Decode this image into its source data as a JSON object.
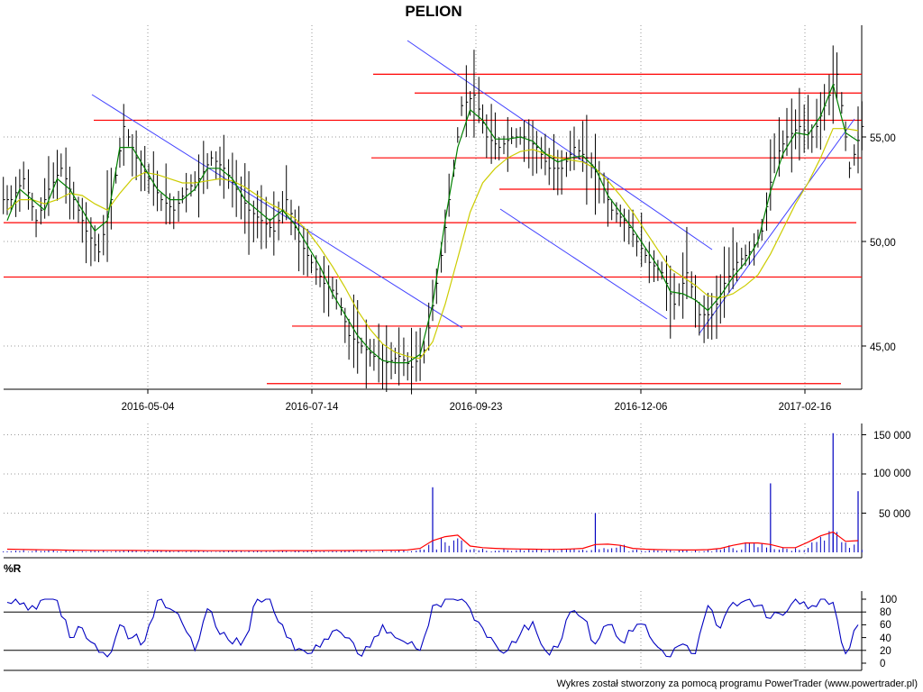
{
  "chart_data": [
    {
      "type": "candlestick",
      "panel": "price",
      "title": "PELION",
      "x_tick_labels": [
        "2016-05-04",
        "2016-07-14",
        "2016-09-23",
        "2016-12-06",
        "2017-02-16"
      ],
      "y_tick_labels": [
        "45,00",
        "50,00",
        "55,00"
      ],
      "y_ticks": [
        45,
        50,
        55
      ],
      "ylim": [
        43,
        59
      ],
      "grid": true,
      "colors": {
        "price": "#000000",
        "sma_short": "#008000",
        "sma_long": "#cccc00",
        "support_resistance": "#ff0000",
        "trend_lines": "#4040ff"
      },
      "series": [
        {
          "name": "close",
          "values": [
            52,
            53,
            51,
            52.5,
            53.5,
            52,
            50.5,
            49.5,
            52,
            55.5,
            54,
            53,
            52,
            51.5,
            52.5,
            53,
            54,
            53.5,
            52.5,
            51.5,
            51,
            50.5,
            52,
            50,
            49,
            48,
            47.5,
            45.5,
            45,
            44.5,
            44.2,
            44.5,
            44,
            44.8,
            48,
            52,
            56.5,
            57,
            55,
            54.5,
            55,
            55,
            54.5,
            53.5,
            53.5,
            54.5,
            54,
            53,
            51.5,
            51,
            50,
            49,
            48.5,
            47,
            48.5,
            46.5,
            46.5,
            48,
            49,
            49.5,
            50.5,
            54,
            55,
            55.5,
            55,
            56.5,
            58,
            53.5,
            55.5
          ]
        },
        {
          "name": "moving-average-short",
          "values": [
            51,
            52.5,
            52,
            51.5,
            53,
            52.5,
            51.5,
            50.5,
            51,
            54.5,
            54.5,
            53.5,
            52.5,
            52,
            52,
            52.5,
            53.5,
            53.5,
            53,
            52,
            51.5,
            51,
            51.5,
            50.8,
            49.8,
            48.8,
            47.5,
            46.5,
            45.5,
            44.8,
            44.3,
            44.2,
            44.2,
            44.6,
            47,
            51,
            54.5,
            56.3,
            55.8,
            54.9,
            54.9,
            55,
            54.8,
            54.2,
            53.8,
            54,
            54.1,
            53.5,
            52.2,
            51.4,
            50.6,
            49.7,
            48.8,
            47.6,
            47.5,
            47.2,
            46.7,
            47.4,
            48.3,
            49,
            50,
            52.4,
            54.2,
            55.2,
            55.1,
            56,
            57.5,
            55.2,
            54.8
          ]
        },
        {
          "name": "moving-average-long",
          "values": [
            51.5,
            52,
            52,
            51.8,
            52,
            52.3,
            52.2,
            51.8,
            51.5,
            52.3,
            53,
            53.3,
            53.2,
            53,
            52.8,
            52.8,
            52.9,
            53,
            52.9,
            52.6,
            52.2,
            51.8,
            51.5,
            51.1,
            50.5,
            49.7,
            48.8,
            47.8,
            46.7,
            45.8,
            45.1,
            44.7,
            44.5,
            44.4,
            45.2,
            47,
            49.2,
            51.4,
            52.8,
            53.5,
            54,
            54.3,
            54.4,
            54.2,
            54,
            53.9,
            53.8,
            53.5,
            52.9,
            52.2,
            51.4,
            50.5,
            49.6,
            48.7,
            48.3,
            47.9,
            47.4,
            47.3,
            47.5,
            47.9,
            48.4,
            49.4,
            50.6,
            51.8,
            52.8,
            54,
            55.4,
            55.4,
            55.3
          ]
        }
      ],
      "support_resistance_levels": [
        58,
        57.1,
        55.8,
        55.8,
        54,
        52.5,
        50.9,
        48.3,
        45.95,
        43.2
      ],
      "trend_lines_description": "blue descending lines and one ascending line drawn on the price panel"
    },
    {
      "type": "bar",
      "panel": "volume",
      "y_tick_labels": [
        "50 000",
        "100 000",
        "150 000"
      ],
      "y_ticks": [
        50000,
        100000,
        150000
      ],
      "ylim": [
        0,
        160000
      ],
      "grid": true,
      "colors": {
        "bars": "#0000c0",
        "average": "#ff0000"
      },
      "series": [
        {
          "name": "volume",
          "spikes": [
            {
              "x_index": 34,
              "value": 83000
            },
            {
              "x_index": 47,
              "value": 50000
            },
            {
              "x_index": 61,
              "value": 88000
            },
            {
              "x_index": 66,
              "value": 152000
            },
            {
              "x_index": 68,
              "value": 78000
            }
          ]
        },
        {
          "name": "volume-average",
          "values": [
            4000,
            3800,
            3500,
            3200,
            3000,
            2800,
            2600,
            2500,
            2500,
            2500,
            2400,
            2300,
            2300,
            2200,
            2200,
            2200,
            2100,
            2100,
            2100,
            2100,
            2100,
            2100,
            2200,
            2200,
            2200,
            2200,
            2300,
            2300,
            2400,
            2500,
            2600,
            2800,
            3000,
            5000,
            15000,
            20000,
            22000,
            8000,
            6000,
            5000,
            4500,
            4200,
            4000,
            3800,
            3800,
            4200,
            5000,
            10000,
            10500,
            9000,
            5000,
            4000,
            3500,
            3200,
            3000,
            3000,
            3500,
            5000,
            9000,
            12000,
            12000,
            10000,
            6000,
            6000,
            13000,
            21000,
            26000,
            14000,
            15000
          ]
        }
      ]
    },
    {
      "type": "line",
      "panel": "oscillator",
      "indicator_label": "%R",
      "y_tick_labels": [
        "0",
        "20",
        "40",
        "60",
        "80",
        "100"
      ],
      "y_ticks": [
        0,
        20,
        40,
        60,
        80,
        100
      ],
      "ylim": [
        0,
        100
      ],
      "reference_levels": [
        20,
        80
      ],
      "colors": {
        "line": "#0000c0"
      },
      "series": [
        {
          "name": "%R",
          "values": [
            95,
            92,
            90,
            100,
            98,
            40,
            55,
            30,
            10,
            60,
            40,
            35,
            98,
            85,
            62,
            20,
            85,
            45,
            30,
            40,
            100,
            100,
            60,
            20,
            15,
            25,
            50,
            40,
            15,
            25,
            60,
            40,
            30,
            20,
            90,
            100,
            98,
            85,
            55,
            30,
            20,
            45,
            65,
            20,
            25,
            80,
            70,
            30,
            60,
            35,
            50,
            60,
            25,
            10,
            30,
            15,
            90,
            55,
            95,
            98,
            90,
            70,
            75,
            100,
            85,
            100,
            95,
            15,
            60
          ]
        }
      ]
    }
  ],
  "footer": {
    "credit": "Wykres został stworzony za pomocą programu PowerTrader (www.powertrader.pl)"
  }
}
